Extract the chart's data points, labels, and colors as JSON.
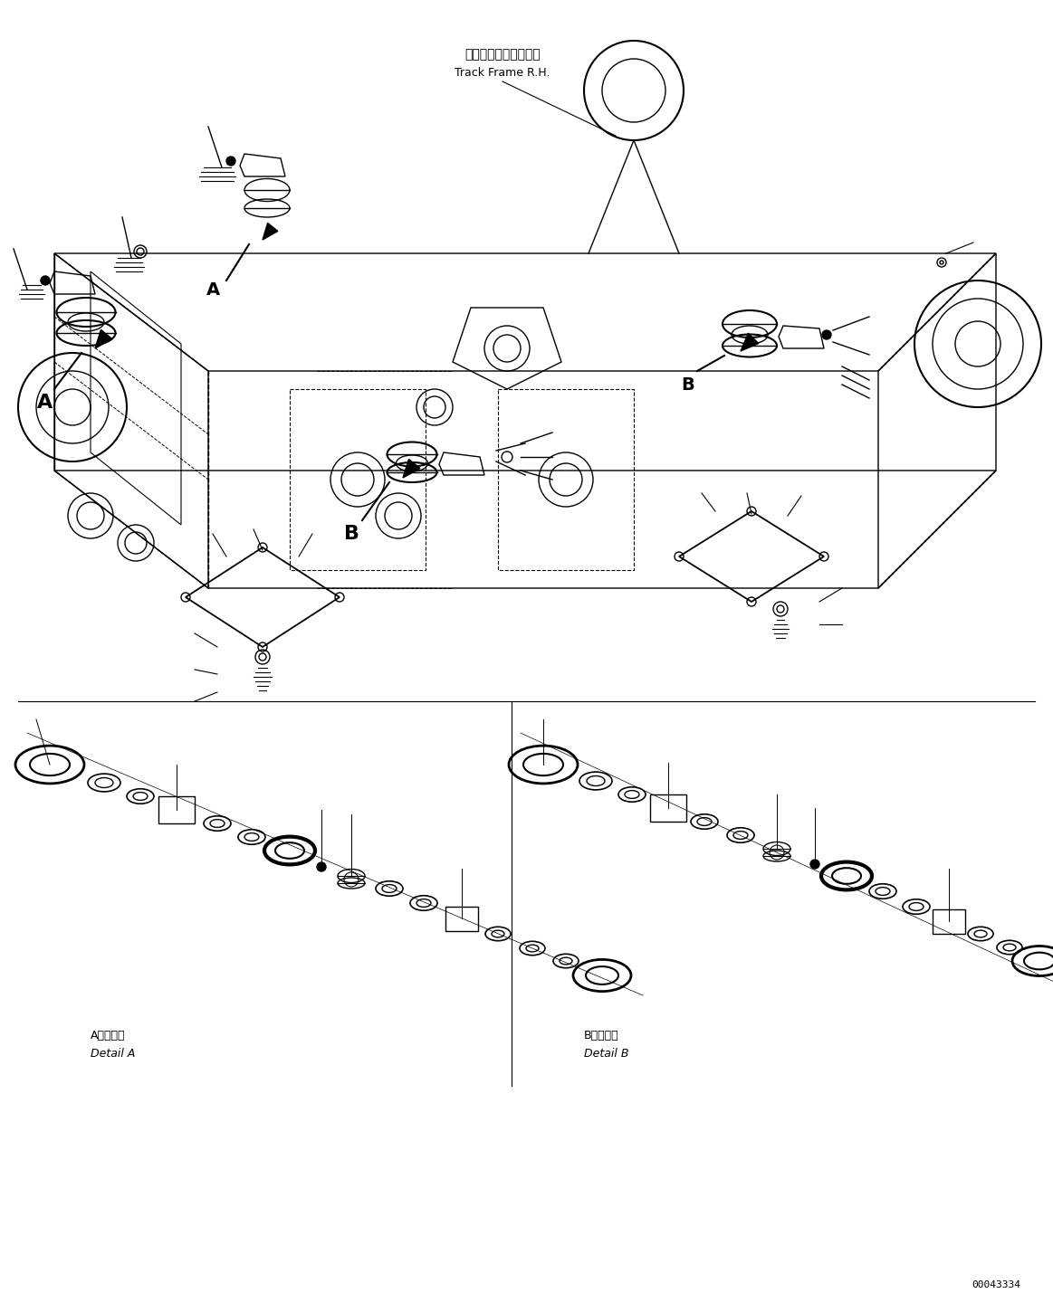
{
  "title": "",
  "background_color": "#ffffff",
  "line_color": "#000000",
  "label_a_jp": "トラックフレーム　右",
  "label_a_en": "Track Frame R.H.",
  "detail_a_jp": "A　詳　細",
  "detail_a_en": "Detail A",
  "detail_b_jp": "B　詳　細",
  "detail_b_en": "Detail B",
  "part_number": "00043334",
  "font_size_label": 9,
  "font_size_detail": 8,
  "font_size_part": 8
}
